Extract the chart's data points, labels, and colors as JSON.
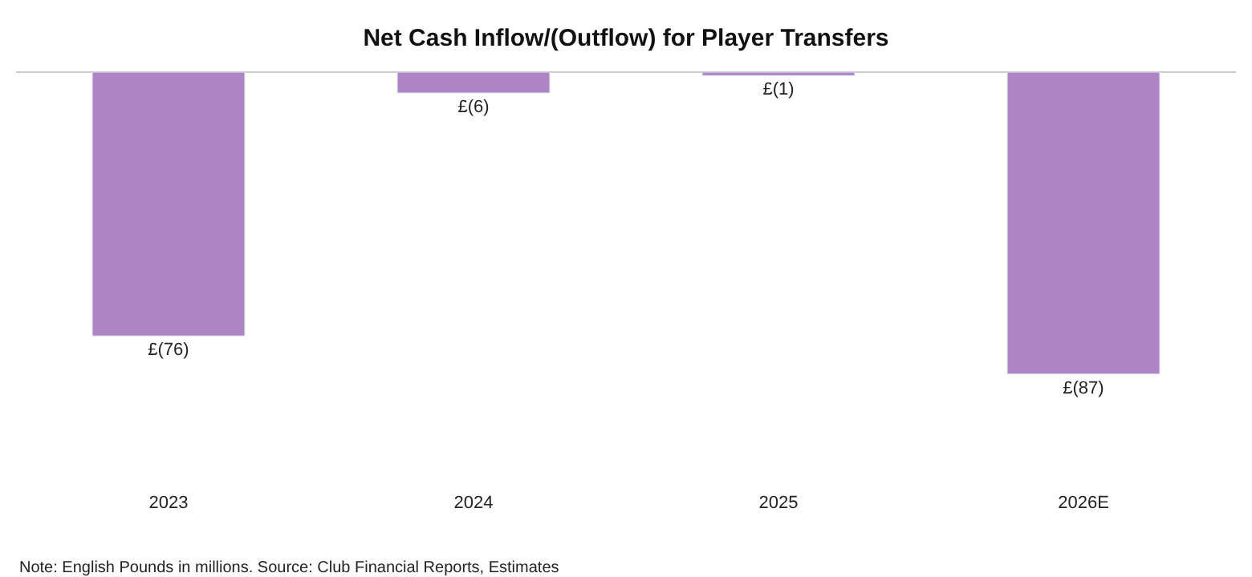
{
  "chart_data": {
    "type": "bar",
    "title": "Net Cash Inflow/(Outflow) for Player Transfers",
    "categories": [
      "2023",
      "2024",
      "2025",
      "2026E"
    ],
    "values": [
      -76,
      -6,
      -1,
      -87
    ],
    "value_labels": [
      "£(76)",
      "£(6)",
      "£(1)",
      "£(87)"
    ],
    "color": "#ae86c6",
    "tick_labels": "x",
    "legend": false,
    "annotations": [
      "Note: English Pounds in millions. Source: Club Financial Reports, Estimates"
    ]
  }
}
